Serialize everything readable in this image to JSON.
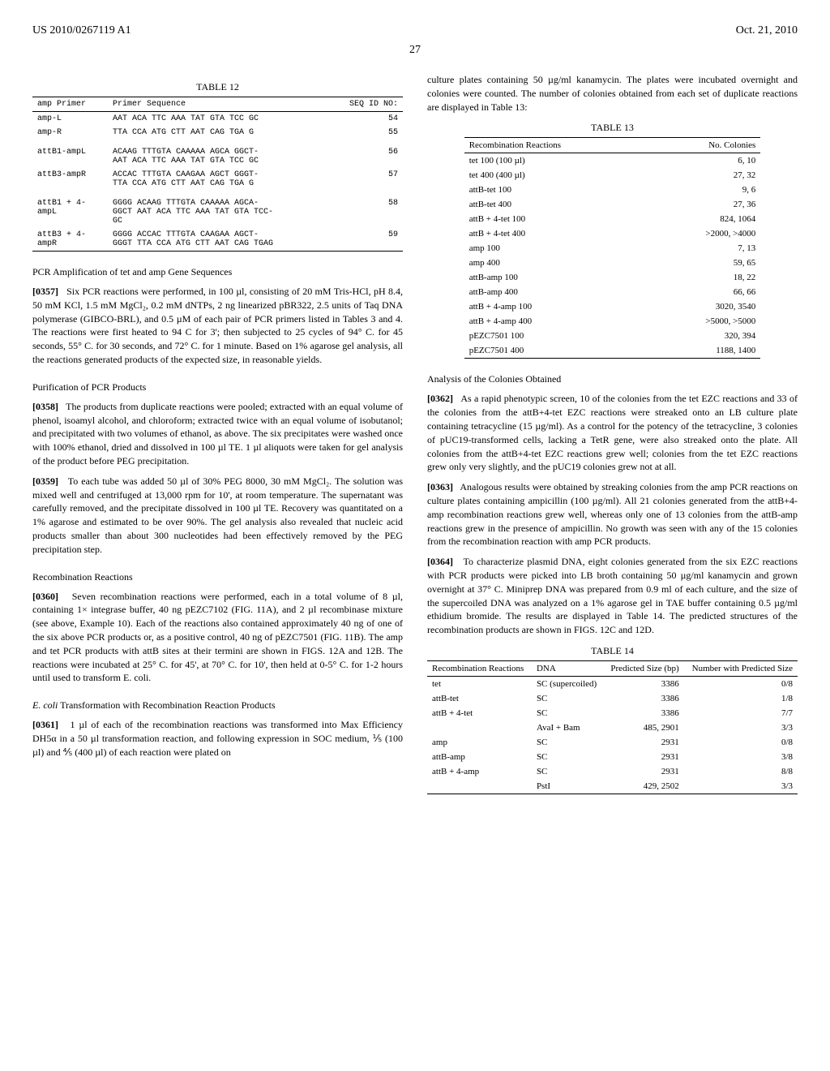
{
  "header": {
    "patent_number": "US 2010/0267119 A1",
    "date": "Oct. 21, 2010",
    "page": "27"
  },
  "table12": {
    "caption": "TABLE 12",
    "headers": {
      "c1": "amp Primer",
      "c2": "Primer Sequence",
      "c3": "SEQ ID NO:"
    },
    "rows": [
      {
        "primer": "amp-L",
        "seq": "AAT ACA TTC AAA TAT GTA TCC GC",
        "id": "54",
        "gap": false
      },
      {
        "primer": "amp-R",
        "seq": "TTA CCA ATG CTT AAT CAG TGA G",
        "id": "55",
        "gap": false
      },
      {
        "primer": "attB1-ampL",
        "seq": "ACAAG TTTGTA CAAAAA AGCA GGCT-\nAAT ACA TTC AAA TAT GTA TCC GC",
        "id": "56",
        "gap": true
      },
      {
        "primer": "attB3-ampR",
        "seq": "ACCAC TTTGTA CAAGAA AGCT GGGT-\nTTA CCA ATG CTT AAT CAG TGA G",
        "id": "57",
        "gap": false
      },
      {
        "primer": "attB1 + 4-\nampL",
        "seq": "GGGG ACAAG TTTGTA CAAAAA AGCA-\nGGCT AAT ACA TTC AAA TAT GTA TCC-\nGC",
        "id": "58",
        "gap": true
      },
      {
        "primer": "attB3 + 4-\nampR",
        "seq": "GGGG ACCAC TTTGTA CAAGAA AGCT-\nGGGT TTA CCA ATG CTT AAT CAG TGAG",
        "id": "59",
        "gap": false
      }
    ]
  },
  "left_sections": [
    {
      "heading": "PCR Amplification of tet and amp Gene Sequences",
      "paragraphs": [
        {
          "num": "[0357]",
          "text": "Six PCR reactions were performed, in 100 µl, consisting of 20 mM Tris-HCl, pH 8.4, 50 mM KCl, 1.5 mM MgCl₂, 0.2 mM dNTPs, 2 ng linearized pBR322, 2.5 units of Taq DNA polymerase (GIBCO-BRL), and 0.5 µM of each pair of PCR primers listed in Tables 3 and 4. The reactions were first heated to 94 C for 3'; then subjected to 25 cycles of 94° C. for 45 seconds, 55° C. for 30 seconds, and 72° C. for 1 minute. Based on 1% agarose gel analysis, all the reactions generated products of the expected size, in reasonable yields."
        }
      ]
    },
    {
      "heading": "Purification of PCR Products",
      "paragraphs": [
        {
          "num": "[0358]",
          "text": "The products from duplicate reactions were pooled; extracted with an equal volume of phenol, isoamyl alcohol, and chloroform; extracted twice with an equal volume of isobutanol; and precipitated with two volumes of ethanol, as above. The six precipitates were washed once with 100% ethanol, dried and dissolved in 100 µl TE. 1 µl aliquots were taken for gel analysis of the product before PEG precipitation."
        },
        {
          "num": "[0359]",
          "text": "To each tube was added 50 µl of 30% PEG 8000, 30 mM MgCl₂. The solution was mixed well and centrifuged at 13,000 rpm for 10', at room temperature. The supernatant was carefully removed, and the precipitate dissolved in 100 µl TE. Recovery was quantitated on a 1% agarose and estimated to be over 90%. The gel analysis also revealed that nucleic acid products smaller than about 300 nucleotides had been effectively removed by the PEG precipitation step."
        }
      ]
    },
    {
      "heading": "Recombination Reactions",
      "paragraphs": [
        {
          "num": "[0360]",
          "text": "Seven recombination reactions were performed, each in a total volume of 8 µl, containing 1× integrase buffer, 40 ng pEZC7102 (FIG. 11A), and 2 µl recombinase mixture (see above, Example 10). Each of the reactions also contained approximately 40 ng of one of the six above PCR products or, as a positive control, 40 ng of pEZC7501 (FIG. 11B). The amp and tet PCR products with attB sites at their termini are shown in FIGS. 12A and 12B. The reactions were incubated at 25° C. for 45', at 70° C. for 10', then held at 0-5° C. for 1-2 hours until used to transform E. coli."
        }
      ]
    },
    {
      "heading": "E. coli Transformation with Recombination Reaction Products",
      "heading_italic_prefix": "E. coli",
      "paragraphs": [
        {
          "num": "[0361]",
          "text": "1 µl of each of the recombination reactions was transformed into Max Efficiency DH5α in a 50 µl transformation reaction, and following expression in SOC medium, ⅕ (100 µl) and ⅘ (400 µl) of each reaction were plated on"
        }
      ]
    }
  ],
  "right_top_paragraph": "culture plates containing 50 µg/ml kanamycin. The plates were incubated overnight and colonies were counted. The number of colonies obtained from each set of duplicate reactions are displayed in Table 13:",
  "table13": {
    "caption": "TABLE 13",
    "headers": {
      "c1": "Recombination Reactions",
      "c2": "No. Colonies"
    },
    "rows": [
      {
        "c1": "tet 100 (100 µl)",
        "c2": "6, 10"
      },
      {
        "c1": "tet 400 (400 µl)",
        "c2": "27, 32"
      },
      {
        "c1": "attB-tet 100",
        "c2": "9, 6"
      },
      {
        "c1": "attB-tet 400",
        "c2": "27, 36"
      },
      {
        "c1": "attB + 4-tet 100",
        "c2": "824, 1064"
      },
      {
        "c1": "attB + 4-tet 400",
        "c2": ">2000, >4000"
      },
      {
        "c1": "amp 100",
        "c2": "7, 13"
      },
      {
        "c1": "amp 400",
        "c2": "59, 65"
      },
      {
        "c1": "attB-amp 100",
        "c2": "18, 22"
      },
      {
        "c1": "attB-amp 400",
        "c2": "66, 66"
      },
      {
        "c1": "attB + 4-amp 100",
        "c2": "3020, 3540"
      },
      {
        "c1": "attB + 4-amp 400",
        "c2": ">5000, >5000"
      },
      {
        "c1": "pEZC7501 100",
        "c2": "320, 394"
      },
      {
        "c1": "pEZC7501 400",
        "c2": "1188, 1400"
      }
    ]
  },
  "right_sections": [
    {
      "heading": "Analysis of the Colonies Obtained",
      "paragraphs": [
        {
          "num": "[0362]",
          "text": "As a rapid phenotypic screen, 10 of the colonies from the tet EZC reactions and 33 of the colonies from the attB+4-tet EZC reactions were streaked onto an LB culture plate containing tetracycline (15 µg/ml). As a control for the potency of the tetracycline, 3 colonies of pUC19-transformed cells, lacking a TetR gene, were also streaked onto the plate. All colonies from the attB+4-tet EZC reactions grew well; colonies from the tet EZC reactions grew only very slightly, and the pUC19 colonies grew not at all."
        },
        {
          "num": "[0363]",
          "text": "Analogous results were obtained by streaking colonies from the amp PCR reactions on culture plates containing ampicillin (100 µg/ml). All 21 colonies generated from the attB+4-amp recombination reactions grew well, whereas only one of 13 colonies from the attB-amp reactions grew in the presence of ampicillin. No growth was seen with any of the 15 colonies from the recombination reaction with amp PCR products."
        },
        {
          "num": "[0364]",
          "text": "To characterize plasmid DNA, eight colonies generated from the six EZC reactions with PCR products were picked into LB broth containing 50 µg/ml kanamycin and grown overnight at 37° C. Miniprep DNA was prepared from 0.9 ml of each culture, and the size of the supercoiled DNA was analyzed on a 1% agarose gel in TAE buffer containing 0.5 µg/ml ethidium bromide. The results are displayed in Table 14. The predicted structures of the recombination products are shown in FIGS. 12C and 12D."
        }
      ]
    }
  ],
  "table14": {
    "caption": "TABLE 14",
    "headers": {
      "c1": "Recombination Reactions",
      "c2": "DNA",
      "c3": "Predicted Size (bp)",
      "c4": "Number with Predicted Size"
    },
    "rows": [
      {
        "c1": "tet",
        "c2": "SC (supercoiled)",
        "c3": "3386",
        "c4": "0/8"
      },
      {
        "c1": "attB-tet",
        "c2": "SC",
        "c3": "3386",
        "c4": "1/8"
      },
      {
        "c1": "attB + 4-tet",
        "c2": "SC",
        "c3": "3386",
        "c4": "7/7"
      },
      {
        "c1": "",
        "c2": "AvaI + Bam",
        "c3": "485, 2901",
        "c4": "3/3"
      },
      {
        "c1": "amp",
        "c2": "SC",
        "c3": "2931",
        "c4": "0/8"
      },
      {
        "c1": "attB-amp",
        "c2": "SC",
        "c3": "2931",
        "c4": "3/8"
      },
      {
        "c1": "attB + 4-amp",
        "c2": "SC",
        "c3": "2931",
        "c4": "8/8"
      },
      {
        "c1": "",
        "c2": "PstI",
        "c3": "429, 2502",
        "c4": "3/3"
      }
    ]
  }
}
